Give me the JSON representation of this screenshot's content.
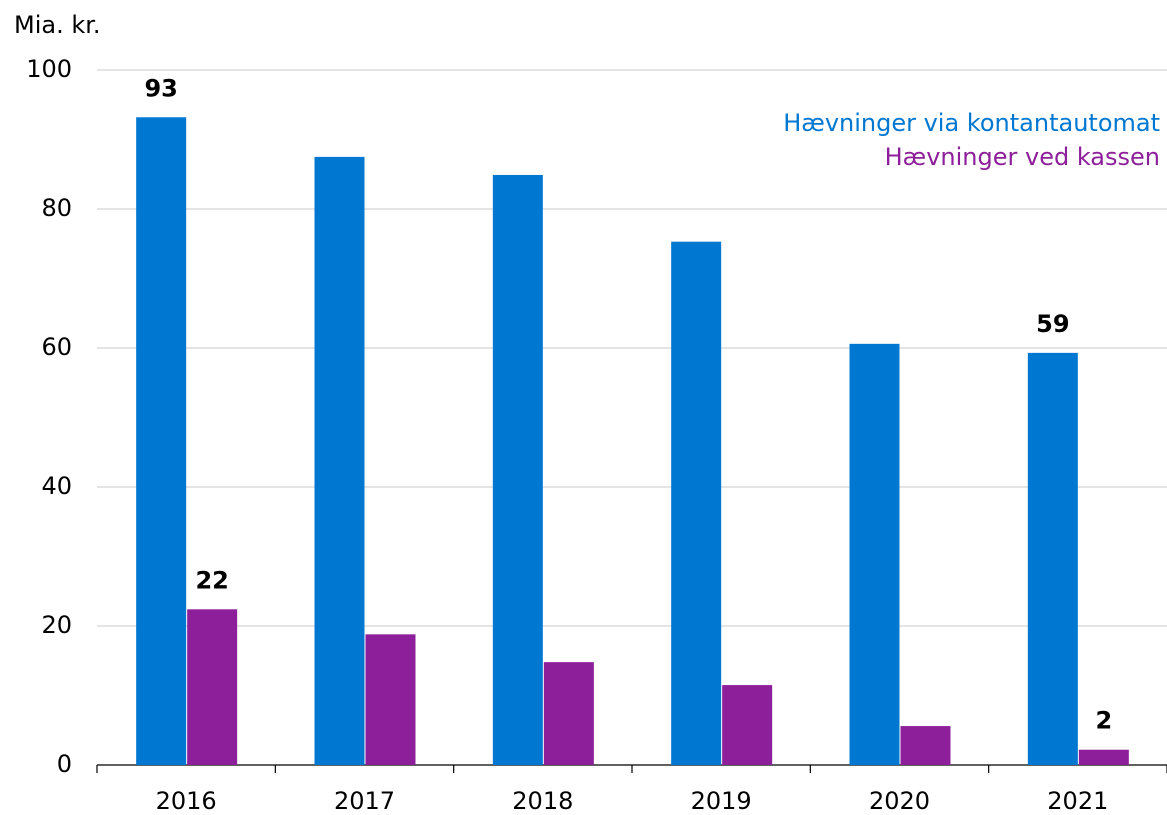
{
  "chart_data": {
    "type": "bar",
    "y_label": "Mia. kr.",
    "categories": [
      "2016",
      "2017",
      "2018",
      "2019",
      "2020",
      "2021"
    ],
    "series": [
      {
        "name": "Hævninger via kontantautomat",
        "color": "#0078d2",
        "values": [
          93.2,
          87.5,
          84.9,
          75.3,
          60.6,
          59.3
        ],
        "value_labels": [
          "93",
          null,
          null,
          null,
          null,
          "59"
        ]
      },
      {
        "name": "Hævninger ved kassen",
        "color": "#8e1f9a",
        "values": [
          22.4,
          18.8,
          14.8,
          11.5,
          5.6,
          2.2
        ],
        "value_labels": [
          "22",
          null,
          null,
          null,
          null,
          "2"
        ]
      }
    ],
    "ylim": [
      0,
      100
    ],
    "yticks": [
      0,
      20,
      40,
      60,
      80,
      100
    ],
    "grid": true,
    "legend": "top-right"
  }
}
